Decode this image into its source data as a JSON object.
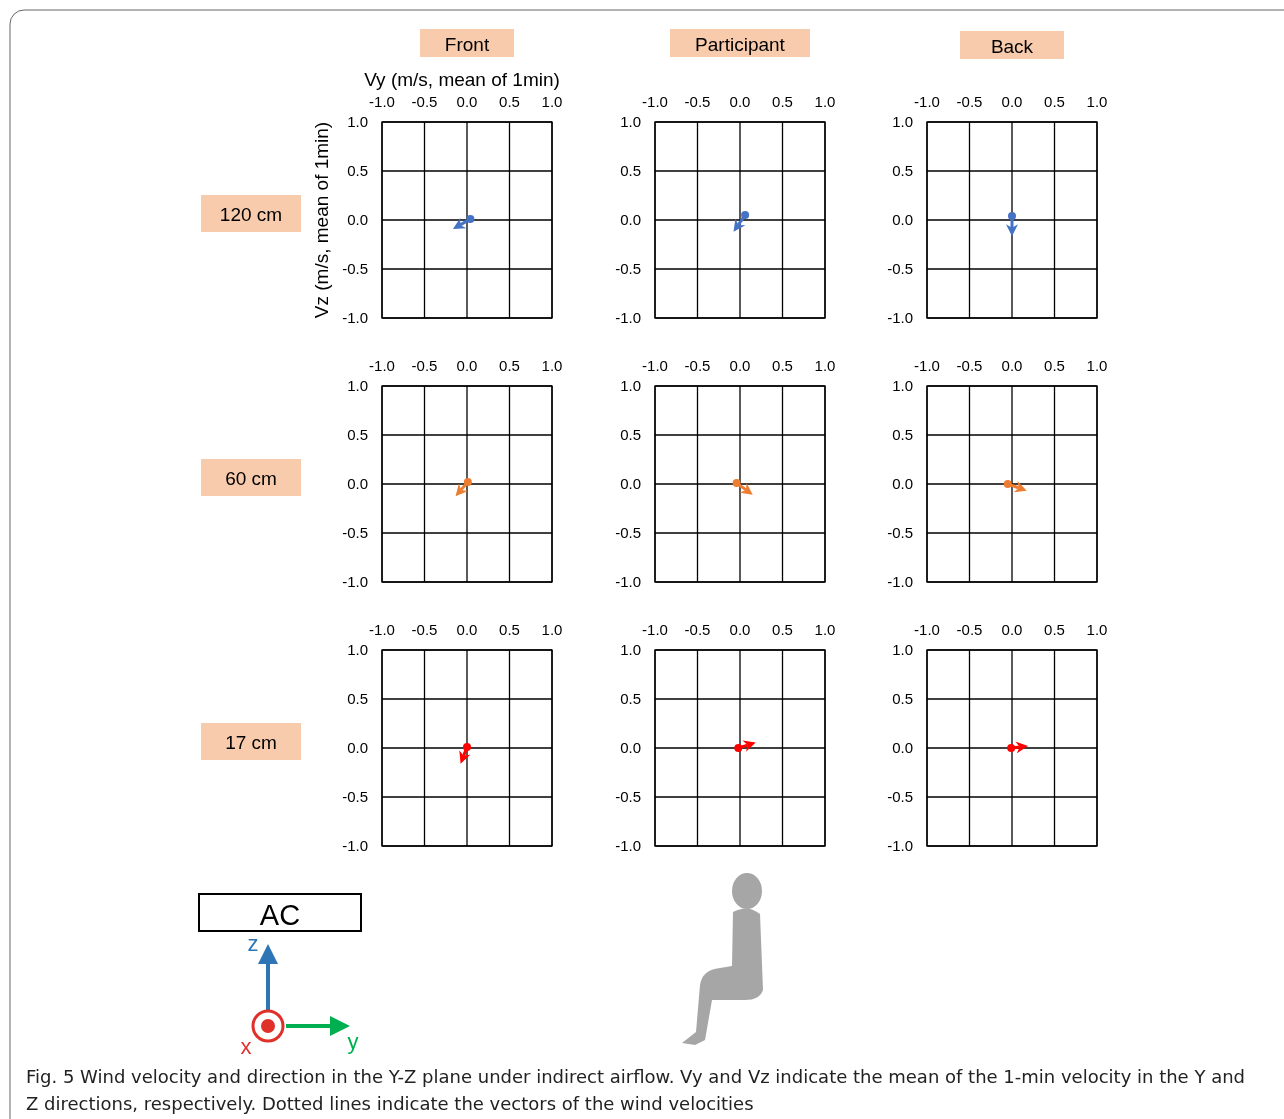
{
  "chart_data": [
    {
      "type": "line",
      "title": "Front",
      "xlabel": "Vy (m/s, mean of 1min)",
      "ylabel": "Vz (m/s, mean of 1min)",
      "annotations": [
        "120 cm"
      ],
      "xlim": [
        -1,
        1
      ],
      "ylim": [
        -1,
        1
      ],
      "xticks": [
        {
          "value": -1,
          "label": "-1.0"
        },
        {
          "value": -0.5,
          "label": "-0.5"
        },
        {
          "value": 0,
          "label": "0.0"
        },
        {
          "value": 0.5,
          "label": "0.5"
        },
        {
          "value": 1,
          "label": "1.0"
        }
      ],
      "yticks": [
        {
          "value": -1,
          "label": "-1.0"
        },
        {
          "value": -0.5,
          "label": "-0.5"
        },
        {
          "value": 0,
          "label": "0.0"
        },
        {
          "value": 0.5,
          "label": "0.5"
        },
        {
          "value": 1,
          "label": "1.0"
        }
      ],
      "grid": true,
      "marker": "circle",
      "series": [
        {
          "color": "#4472c4",
          "x": [
            0.04,
            -0.08
          ],
          "values": [
            0.01,
            -0.05
          ]
        }
      ]
    },
    {
      "type": "line",
      "title": "Participant",
      "xlim": [
        -1,
        1
      ],
      "ylim": [
        -1,
        1
      ],
      "xticks": [
        {
          "value": -1,
          "label": "-1.0"
        },
        {
          "value": -0.5,
          "label": "-0.5"
        },
        {
          "value": 0,
          "label": "0.0"
        },
        {
          "value": 0.5,
          "label": "0.5"
        },
        {
          "value": 1,
          "label": "1.0"
        }
      ],
      "yticks": [
        {
          "value": -1,
          "label": "-1.0"
        },
        {
          "value": -0.5,
          "label": "-0.5"
        },
        {
          "value": 0,
          "label": "0.0"
        },
        {
          "value": 0.5,
          "label": "0.5"
        },
        {
          "value": 1,
          "label": "1.0"
        }
      ],
      "grid": true,
      "marker": "circle",
      "series": [
        {
          "color": "#4472c4",
          "x": [
            0.06,
            -0.02
          ],
          "values": [
            0.05,
            -0.05
          ]
        }
      ]
    },
    {
      "type": "line",
      "title": "Back",
      "xlim": [
        -1,
        1
      ],
      "ylim": [
        -1,
        1
      ],
      "xticks": [
        {
          "value": -1,
          "label": "-1.0"
        },
        {
          "value": -0.5,
          "label": "-0.5"
        },
        {
          "value": 0,
          "label": "0.0"
        },
        {
          "value": 0.5,
          "label": "0.5"
        },
        {
          "value": 1,
          "label": "1.0"
        }
      ],
      "yticks": [
        {
          "value": -1,
          "label": "-1.0"
        },
        {
          "value": -0.5,
          "label": "-0.5"
        },
        {
          "value": 0,
          "label": "0.0"
        },
        {
          "value": 0.5,
          "label": "0.5"
        },
        {
          "value": 1,
          "label": "1.0"
        }
      ],
      "grid": true,
      "marker": "circle",
      "series": [
        {
          "color": "#4472c4",
          "x": [
            0,
            0
          ],
          "values": [
            0.04,
            -0.08
          ]
        }
      ]
    },
    {
      "type": "line",
      "annotations": [
        "60 cm"
      ],
      "xlim": [
        -1,
        1
      ],
      "ylim": [
        -1,
        1
      ],
      "xticks": [
        {
          "value": -1,
          "label": "-1.0"
        },
        {
          "value": -0.5,
          "label": "-0.5"
        },
        {
          "value": 0,
          "label": "0.0"
        },
        {
          "value": 0.5,
          "label": "0.5"
        },
        {
          "value": 1,
          "label": "1.0"
        }
      ],
      "yticks": [
        {
          "value": -1,
          "label": "-1.0"
        },
        {
          "value": -0.5,
          "label": "-0.5"
        },
        {
          "value": 0,
          "label": "0.0"
        },
        {
          "value": 0.5,
          "label": "0.5"
        },
        {
          "value": 1,
          "label": "1.0"
        }
      ],
      "grid": true,
      "marker": "circle",
      "series": [
        {
          "color": "#ed7d31",
          "x": [
            0.01,
            -0.07
          ],
          "values": [
            0.02,
            -0.06
          ]
        }
      ]
    },
    {
      "type": "line",
      "xlim": [
        -1,
        1
      ],
      "ylim": [
        -1,
        1
      ],
      "xticks": [
        {
          "value": -1,
          "label": "-1.0"
        },
        {
          "value": -0.5,
          "label": "-0.5"
        },
        {
          "value": 0,
          "label": "0.0"
        },
        {
          "value": 0.5,
          "label": "0.5"
        },
        {
          "value": 1,
          "label": "1.0"
        }
      ],
      "yticks": [
        {
          "value": -1,
          "label": "-1.0"
        },
        {
          "value": -0.5,
          "label": "-0.5"
        },
        {
          "value": 0,
          "label": "0.0"
        },
        {
          "value": 0.5,
          "label": "0.5"
        },
        {
          "value": 1,
          "label": "1.0"
        }
      ],
      "grid": true,
      "marker": "circle",
      "series": [
        {
          "color": "#ed7d31",
          "x": [
            -0.04,
            0.07
          ],
          "values": [
            0.01,
            -0.06
          ]
        }
      ]
    },
    {
      "type": "line",
      "xlim": [
        -1,
        1
      ],
      "ylim": [
        -1,
        1
      ],
      "xticks": [
        {
          "value": -1,
          "label": "-1.0"
        },
        {
          "value": -0.5,
          "label": "-0.5"
        },
        {
          "value": 0,
          "label": "0.0"
        },
        {
          "value": 0.5,
          "label": "0.5"
        },
        {
          "value": 1,
          "label": "1.0"
        }
      ],
      "yticks": [
        {
          "value": -1,
          "label": "-1.0"
        },
        {
          "value": -0.5,
          "label": "-0.5"
        },
        {
          "value": 0,
          "label": "0.0"
        },
        {
          "value": 0.5,
          "label": "0.5"
        },
        {
          "value": 1,
          "label": "1.0"
        }
      ],
      "grid": true,
      "marker": "circle",
      "series": [
        {
          "color": "#ed7d31",
          "x": [
            -0.05,
            0.08
          ],
          "values": [
            0,
            -0.04
          ]
        }
      ]
    },
    {
      "type": "line",
      "annotations": [
        "17 cm",
        "AC",
        "z",
        "y",
        "x"
      ],
      "xlim": [
        -1,
        1
      ],
      "ylim": [
        -1,
        1
      ],
      "xticks": [
        {
          "value": -1,
          "label": "-1.0"
        },
        {
          "value": -0.5,
          "label": "-0.5"
        },
        {
          "value": 0,
          "label": "0.0"
        },
        {
          "value": 0.5,
          "label": "0.5"
        },
        {
          "value": 1,
          "label": "1.0"
        }
      ],
      "yticks": [
        {
          "value": -1,
          "label": "-1.0"
        },
        {
          "value": -0.5,
          "label": "-0.5"
        },
        {
          "value": 0,
          "label": "0.0"
        },
        {
          "value": 0.5,
          "label": "0.5"
        },
        {
          "value": 1,
          "label": "1.0"
        }
      ],
      "grid": true,
      "marker": "circle",
      "series": [
        {
          "color": "#ff0000",
          "x": [
            0,
            -0.04
          ],
          "values": [
            0.01,
            -0.08
          ]
        }
      ]
    },
    {
      "type": "line",
      "xlim": [
        -1,
        1
      ],
      "ylim": [
        -1,
        1
      ],
      "xticks": [
        {
          "value": -1,
          "label": "-1.0"
        },
        {
          "value": -0.5,
          "label": "-0.5"
        },
        {
          "value": 0,
          "label": "0.0"
        },
        {
          "value": 0.5,
          "label": "0.5"
        },
        {
          "value": 1,
          "label": "1.0"
        }
      ],
      "yticks": [
        {
          "value": -1,
          "label": "-1.0"
        },
        {
          "value": -0.5,
          "label": "-0.5"
        },
        {
          "value": 0,
          "label": "0.0"
        },
        {
          "value": 0.5,
          "label": "0.5"
        },
        {
          "value": 1,
          "label": "1.0"
        }
      ],
      "grid": true,
      "marker": "circle",
      "series": [
        {
          "color": "#ff0000",
          "x": [
            -0.02,
            0.09
          ],
          "values": [
            0,
            0.03
          ]
        }
      ]
    },
    {
      "type": "line",
      "annotations": [
        "Fig. 5 Wind velocity and direction in the Y-Z plane under indirect airflow. Vy and Vz indicate the mean of the 1-min velocity in the Y and Z directions, respectively. Dotted lines indicate the vectors of the wind velocities"
      ],
      "xlim": [
        -1,
        1
      ],
      "ylim": [
        -1,
        1
      ],
      "xticks": [
        {
          "value": -1,
          "label": "-1.0"
        },
        {
          "value": -0.5,
          "label": "-0.5"
        },
        {
          "value": 0,
          "label": "0.0"
        },
        {
          "value": 0.5,
          "label": "0.5"
        },
        {
          "value": 1,
          "label": "1.0"
        }
      ],
      "yticks": [
        {
          "value": -1,
          "label": "-1.0"
        },
        {
          "value": -0.5,
          "label": "-0.5"
        },
        {
          "value": 0,
          "label": "0.0"
        },
        {
          "value": 0.5,
          "label": "0.5"
        },
        {
          "value": 1,
          "label": "1.0"
        }
      ],
      "grid": true,
      "marker": "circle",
      "series": [
        {
          "color": "#ff0000",
          "x": [
            -0.01,
            0.09
          ],
          "values": [
            0,
            0.01
          ]
        }
      ]
    }
  ]
}
